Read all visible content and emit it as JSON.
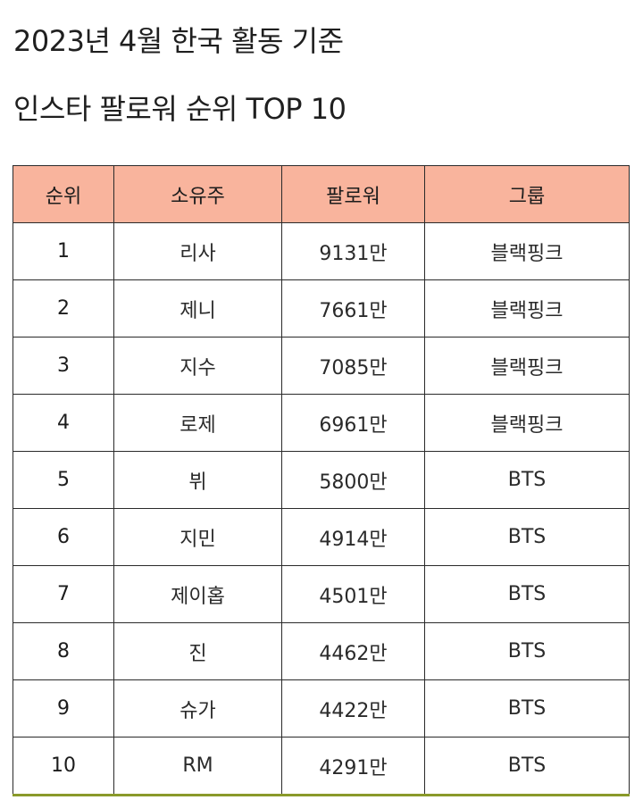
{
  "title": {
    "line1": "2023년 4월 한국 활동 기준",
    "line2": "인스타 팔로워 순위 TOP 10"
  },
  "table": {
    "header_color": "#f9b49d",
    "columns": [
      "순위",
      "소유주",
      "팔로워",
      "그룹"
    ],
    "rows": [
      {
        "rank": "1",
        "owner": "리사",
        "followers": "9131만",
        "group": "블랙핑크"
      },
      {
        "rank": "2",
        "owner": "제니",
        "followers": "7661만",
        "group": "블랙핑크"
      },
      {
        "rank": "3",
        "owner": "지수",
        "followers": "7085만",
        "group": "블랙핑크"
      },
      {
        "rank": "4",
        "owner": "로제",
        "followers": "6961만",
        "group": "블랙핑크"
      },
      {
        "rank": "5",
        "owner": "뷔",
        "followers": "5800만",
        "group": "BTS"
      },
      {
        "rank": "6",
        "owner": "지민",
        "followers": "4914만",
        "group": "BTS"
      },
      {
        "rank": "7",
        "owner": "제이홉",
        "followers": "4501만",
        "group": "BTS"
      },
      {
        "rank": "8",
        "owner": "진",
        "followers": "4462만",
        "group": "BTS"
      },
      {
        "rank": "9",
        "owner": "슈가",
        "followers": "4422만",
        "group": "BTS"
      },
      {
        "rank": "10",
        "owner": "RM",
        "followers": "4291만",
        "group": "BTS"
      }
    ]
  }
}
